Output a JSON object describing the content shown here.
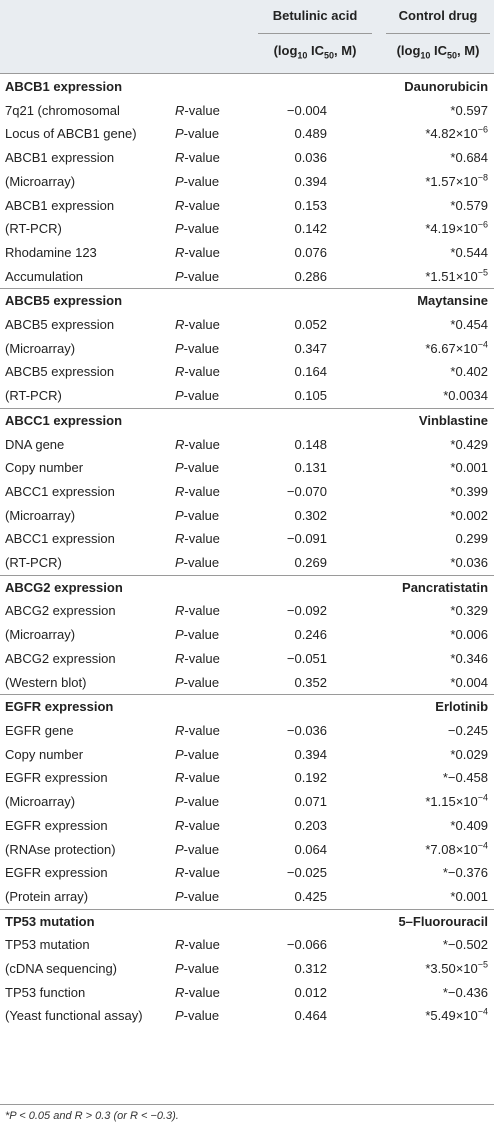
{
  "header": {
    "col3_title": "Betulinic acid",
    "col3_unit_pre": "(log",
    "col3_unit_sub10": "10",
    "col3_unit_mid": " IC",
    "col3_unit_sub50": "50",
    "col3_unit_post": ", M)",
    "col4_title": "Control drug",
    "col4_unit_pre": "(log",
    "col4_unit_sub10": "10",
    "col4_unit_mid": " IC",
    "col4_unit_sub50": "50",
    "col4_unit_post": ", M)"
  },
  "sections": [
    {
      "title": "ABCB1 expression",
      "drug": "Daunorubicin",
      "rows": [
        [
          "7q21 (chromosomal",
          "R",
          "-value",
          "−0.004",
          "*0.597",
          ""
        ],
        [
          "Locus of ABCB1 gene)",
          "P",
          "-value",
          "0.489",
          "*4.82×10",
          "−6"
        ],
        [
          "ABCB1 expression",
          "R",
          "-value",
          "0.036",
          "*0.684",
          ""
        ],
        [
          "(Microarray)",
          "P",
          "-value",
          "0.394",
          "*1.57×10",
          "−8"
        ],
        [
          "ABCB1 expression",
          "R",
          "-value",
          "0.153",
          "*0.579",
          ""
        ],
        [
          "(RT-PCR)",
          "P",
          "-value",
          "0.142",
          "*4.19×10",
          "−6"
        ],
        [
          "Rhodamine 123",
          "R",
          "-value",
          "0.076",
          "*0.544",
          ""
        ],
        [
          "Accumulation",
          "P",
          "-value",
          "0.286",
          "*1.51×10",
          "−5"
        ]
      ]
    },
    {
      "title": "ABCB5 expression",
      "drug": "Maytansine",
      "rows": [
        [
          "ABCB5 expression",
          "R",
          "-value",
          "0.052",
          "*0.454",
          ""
        ],
        [
          "(Microarray)",
          "P",
          "-value",
          "0.347",
          "*6.67×10",
          "−4"
        ],
        [
          "ABCB5 expression",
          "R",
          "-value",
          "0.164",
          "*0.402",
          ""
        ],
        [
          "(RT-PCR)",
          "P",
          "-value",
          "0.105",
          "*0.0034",
          ""
        ]
      ]
    },
    {
      "title": "ABCC1 expression",
      "drug": "Vinblastine",
      "rows": [
        [
          "DNA gene",
          "R",
          "-value",
          "0.148",
          "*0.429",
          ""
        ],
        [
          "Copy number",
          "P",
          "-value",
          "0.131",
          "*0.001",
          ""
        ],
        [
          "ABCC1 expression",
          "R",
          "-value",
          "−0.070",
          "*0.399",
          ""
        ],
        [
          "(Microarray)",
          "P",
          "-value",
          "0.302",
          "*0.002",
          ""
        ],
        [
          "ABCC1 expression",
          "R",
          "-value",
          "−0.091",
          "0.299",
          ""
        ],
        [
          "(RT-PCR)",
          "P",
          "-value",
          "0.269",
          "*0.036",
          ""
        ]
      ]
    },
    {
      "title": "ABCG2 expression",
      "drug": "Pancratistatin",
      "rows": [
        [
          "ABCG2 expression",
          "R",
          "-value",
          "−0.092",
          "*0.329",
          ""
        ],
        [
          "(Microarray)",
          "P",
          "-value",
          "0.246",
          "*0.006",
          ""
        ],
        [
          "ABCG2 expression",
          "R",
          "-value",
          "−0.051",
          "*0.346",
          ""
        ],
        [
          "(Western blot)",
          "P",
          "-value",
          "0.352",
          "*0.004",
          ""
        ]
      ]
    },
    {
      "title": "EGFR expression",
      "drug": "Erlotinib",
      "rows": [
        [
          "EGFR gene",
          "R",
          "-value",
          "−0.036",
          "−0.245",
          ""
        ],
        [
          "Copy number",
          "P",
          "-value",
          "0.394",
          "*0.029",
          ""
        ],
        [
          "EGFR expression",
          "R",
          "-value",
          "0.192",
          "*−0.458",
          ""
        ],
        [
          "(Microarray)",
          "P",
          "-value",
          "0.071",
          "*1.15×10",
          "−4"
        ],
        [
          "EGFR expression",
          "R",
          "-value",
          "0.203",
          "*0.409",
          ""
        ],
        [
          "(RNAse protection)",
          "P",
          "-value",
          "0.064",
          "*7.08×10",
          "−4"
        ],
        [
          "EGFR expression",
          "R",
          "-value",
          "−0.025",
          "*−0.376",
          ""
        ],
        [
          "(Protein array)",
          "P",
          "-value",
          "0.425",
          "*0.001",
          ""
        ]
      ]
    },
    {
      "title": "TP53 mutation",
      "drug": "5–Fluorouracil",
      "rows": [
        [
          "TP53 mutation",
          "R",
          "-value",
          "−0.066",
          "*−0.502",
          ""
        ],
        [
          "(cDNA sequencing)",
          "P",
          "-value",
          "0.312",
          "*3.50×10",
          "−5"
        ],
        [
          "TP53 function",
          "R",
          "-value",
          "0.012",
          "*−0.436",
          ""
        ],
        [
          "(Yeast functional assay)",
          "P",
          "-value",
          "0.464",
          "*5.49×10",
          "−4"
        ]
      ]
    }
  ],
  "footnote": "*P < 0.05 and R > 0.3 (or R < −0.3)."
}
